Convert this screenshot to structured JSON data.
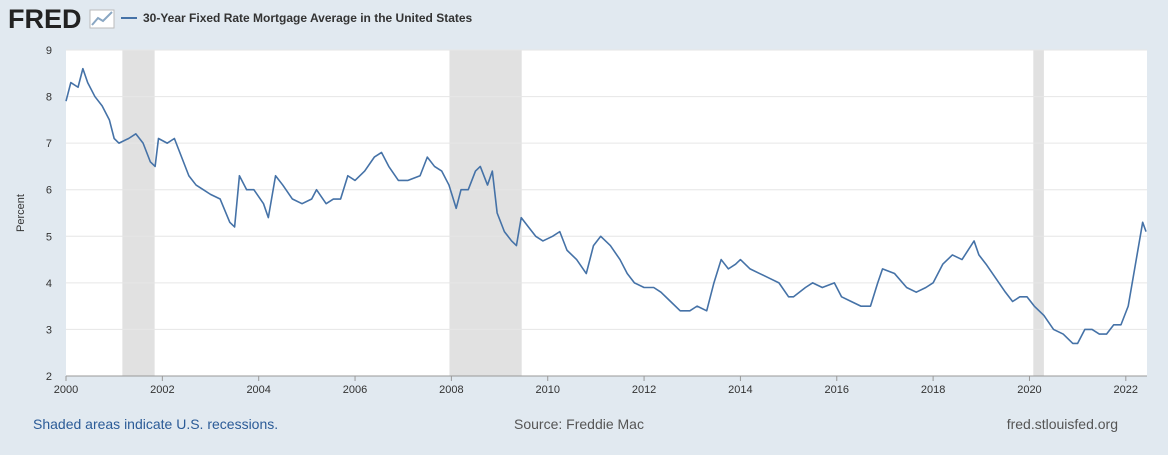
{
  "header": {
    "logo": "FRED"
  },
  "footer": {
    "note": "Shaded areas indicate U.S. recessions.",
    "source": "Source: Freddie Mac",
    "url": "fred.stlouisfed.org"
  },
  "chart_data": {
    "type": "line",
    "ylabel": "Percent",
    "xlim": [
      2000,
      2022.44
    ],
    "xticks": [
      2000,
      2002,
      2004,
      2006,
      2008,
      2010,
      2012,
      2014,
      2016,
      2018,
      2020,
      2022
    ],
    "ylim": [
      2,
      9
    ],
    "yticks": [
      2,
      3,
      4,
      5,
      6,
      7,
      8,
      9
    ],
    "grid": true,
    "recessions": [
      [
        2001.17,
        2001.84
      ],
      [
        2007.96,
        2009.46
      ],
      [
        2020.08,
        2020.3
      ]
    ],
    "recession_color": "#e1e1e1",
    "x": [
      2000.0,
      2000.1,
      2000.25,
      2000.35,
      2000.45,
      2000.6,
      2000.75,
      2000.9,
      2001.0,
      2001.1,
      2001.3,
      2001.45,
      2001.6,
      2001.75,
      2001.85,
      2001.92,
      2002.1,
      2002.25,
      2002.4,
      2002.55,
      2002.7,
      2002.85,
      2003.0,
      2003.2,
      2003.4,
      2003.5,
      2003.6,
      2003.75,
      2003.9,
      2004.1,
      2004.2,
      2004.35,
      2004.5,
      2004.7,
      2004.9,
      2005.1,
      2005.2,
      2005.4,
      2005.55,
      2005.7,
      2005.85,
      2006.0,
      2006.2,
      2006.4,
      2006.55,
      2006.7,
      2006.9,
      2007.1,
      2007.35,
      2007.5,
      2007.65,
      2007.8,
      2007.95,
      2008.1,
      2008.2,
      2008.35,
      2008.5,
      2008.6,
      2008.75,
      2008.85,
      2008.95,
      2009.1,
      2009.25,
      2009.35,
      2009.45,
      2009.6,
      2009.75,
      2009.9,
      2010.1,
      2010.25,
      2010.4,
      2010.6,
      2010.8,
      2010.95,
      2011.1,
      2011.3,
      2011.5,
      2011.65,
      2011.8,
      2012.0,
      2012.2,
      2012.35,
      2012.55,
      2012.75,
      2012.95,
      2013.1,
      2013.3,
      2013.45,
      2013.6,
      2013.75,
      2013.9,
      2014.0,
      2014.2,
      2014.4,
      2014.6,
      2014.8,
      2015.0,
      2015.1,
      2015.35,
      2015.5,
      2015.7,
      2015.95,
      2016.1,
      2016.3,
      2016.5,
      2016.7,
      2016.85,
      2016.95,
      2017.2,
      2017.45,
      2017.65,
      2017.85,
      2018.0,
      2018.2,
      2018.4,
      2018.6,
      2018.85,
      2018.95,
      2019.1,
      2019.3,
      2019.5,
      2019.65,
      2019.8,
      2019.95,
      2020.1,
      2020.3,
      2020.5,
      2020.7,
      2020.9,
      2021.0,
      2021.15,
      2021.3,
      2021.45,
      2021.6,
      2021.75,
      2021.9,
      2022.05,
      2022.2,
      2022.35,
      2022.42
    ],
    "series": [
      {
        "name": "30-Year Fixed Rate Mortgage Average in the United States",
        "color": "#4572a7",
        "values": [
          7.9,
          8.3,
          8.2,
          8.6,
          8.3,
          8.0,
          7.8,
          7.5,
          7.1,
          7.0,
          7.1,
          7.2,
          7.0,
          6.6,
          6.5,
          7.1,
          7.0,
          7.1,
          6.7,
          6.3,
          6.1,
          6.0,
          5.9,
          5.8,
          5.3,
          5.2,
          6.3,
          6.0,
          6.0,
          5.7,
          5.4,
          6.3,
          6.1,
          5.8,
          5.7,
          5.8,
          6.0,
          5.7,
          5.8,
          5.8,
          6.3,
          6.2,
          6.4,
          6.7,
          6.8,
          6.5,
          6.2,
          6.2,
          6.3,
          6.7,
          6.5,
          6.4,
          6.1,
          5.6,
          6.0,
          6.0,
          6.4,
          6.5,
          6.1,
          6.4,
          5.5,
          5.1,
          4.9,
          4.8,
          5.4,
          5.2,
          5.0,
          4.9,
          5.0,
          5.1,
          4.7,
          4.5,
          4.2,
          4.8,
          5.0,
          4.8,
          4.5,
          4.2,
          4.0,
          3.9,
          3.9,
          3.8,
          3.6,
          3.4,
          3.4,
          3.5,
          3.4,
          4.0,
          4.5,
          4.3,
          4.4,
          4.5,
          4.3,
          4.2,
          4.1,
          4.0,
          3.7,
          3.7,
          3.9,
          4.0,
          3.9,
          4.0,
          3.7,
          3.6,
          3.5,
          3.5,
          4.0,
          4.3,
          4.2,
          3.9,
          3.8,
          3.9,
          4.0,
          4.4,
          4.6,
          4.5,
          4.9,
          4.6,
          4.4,
          4.1,
          3.8,
          3.6,
          3.7,
          3.7,
          3.5,
          3.3,
          3.0,
          2.9,
          2.7,
          2.7,
          3.0,
          3.0,
          2.9,
          2.9,
          3.1,
          3.1,
          3.5,
          4.4,
          5.3,
          5.1
        ]
      }
    ]
  }
}
